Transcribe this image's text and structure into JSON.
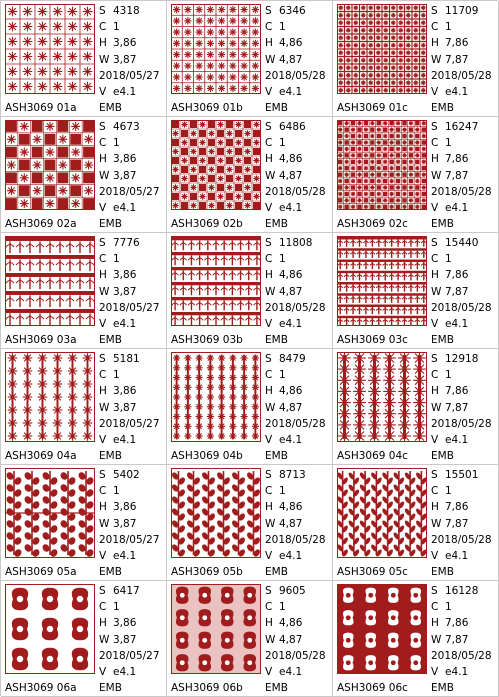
{
  "palette": {
    "thread": "#a11d1d",
    "light": "#c55050",
    "grid": "#c9c9c9"
  },
  "labels": {
    "stitches": "S",
    "colors": "C",
    "height": "H",
    "width": "W",
    "version": "V"
  },
  "items": [
    {
      "name": "ASH3069  01a",
      "s": "4318",
      "c": "1",
      "h": "3,86",
      "w": "3,87",
      "date": "2018/05/27",
      "v": "e4.1",
      "fmt": "EMB",
      "pattern": "lattice",
      "density": 1
    },
    {
      "name": "ASH3069  01b",
      "s": "6346",
      "c": "1",
      "h": "4,86",
      "w": "4,87",
      "date": "2018/05/28",
      "v": "e4.1",
      "fmt": "EMB",
      "pattern": "lattice",
      "density": 2
    },
    {
      "name": "ASH3069  01c",
      "s": "11709",
      "c": "1",
      "h": "7,86",
      "w": "7,87",
      "date": "2018/05/28",
      "v": "e4.1",
      "fmt": "EMB",
      "pattern": "lattice",
      "density": 3
    },
    {
      "name": "ASH3069  02a",
      "s": "4673",
      "c": "1",
      "h": "3,86",
      "w": "3,87",
      "date": "2018/05/27",
      "v": "e4.1",
      "fmt": "EMB",
      "pattern": "checker",
      "density": 1
    },
    {
      "name": "ASH3069  02b",
      "s": "6486",
      "c": "1",
      "h": "4,86",
      "w": "4,87",
      "date": "2018/05/28",
      "v": "e4.1",
      "fmt": "EMB",
      "pattern": "checker",
      "density": 2
    },
    {
      "name": "ASH3069  02c",
      "s": "16247",
      "c": "1",
      "h": "7,86",
      "w": "7,87",
      "date": "2018/05/28",
      "v": "e4.1",
      "fmt": "EMB",
      "pattern": "checker",
      "density": 3
    },
    {
      "name": "ASH3069  03a",
      "s": "7776",
      "c": "1",
      "h": "3,86",
      "w": "3,87",
      "date": "2018/05/27",
      "v": "e4.1",
      "fmt": "EMB",
      "pattern": "bands",
      "density": 1
    },
    {
      "name": "ASH3069  03b",
      "s": "11808",
      "c": "1",
      "h": "4,86",
      "w": "4,87",
      "date": "2018/05/28",
      "v": "e4.1",
      "fmt": "EMB",
      "pattern": "bands",
      "density": 2
    },
    {
      "name": "ASH3069  03c",
      "s": "15440",
      "c": "1",
      "h": "7,86",
      "w": "7,87",
      "date": "2018/05/28",
      "v": "e4.1",
      "fmt": "EMB",
      "pattern": "bands",
      "density": 3
    },
    {
      "name": "ASH3069  04a",
      "s": "5181",
      "c": "1",
      "h": "3,86",
      "w": "3,87",
      "date": "2018/05/27",
      "v": "e4.1",
      "fmt": "EMB",
      "pattern": "columns",
      "density": 1
    },
    {
      "name": "ASH3069  04b",
      "s": "8479",
      "c": "1",
      "h": "4,86",
      "w": "4,87",
      "date": "2018/05/28",
      "v": "e4.1",
      "fmt": "EMB",
      "pattern": "columns",
      "density": 2
    },
    {
      "name": "ASH3069  04c",
      "s": "12918",
      "c": "1",
      "h": "7,86",
      "w": "7,87",
      "date": "2018/05/28",
      "v": "e4.1",
      "fmt": "EMB",
      "pattern": "columns",
      "density": 3
    },
    {
      "name": "ASH3069  05a",
      "s": "5402",
      "c": "1",
      "h": "3,86",
      "w": "3,87",
      "date": "2018/05/27",
      "v": "e4.1",
      "fmt": "EMB",
      "pattern": "vines",
      "density": 1
    },
    {
      "name": "ASH3069  05b",
      "s": "8713",
      "c": "1",
      "h": "4,86",
      "w": "4,87",
      "date": "2018/05/28",
      "v": "e4.1",
      "fmt": "EMB",
      "pattern": "vines",
      "density": 2
    },
    {
      "name": "ASH3069  05c",
      "s": "15501",
      "c": "1",
      "h": "7,86",
      "w": "7,87",
      "date": "2018/05/28",
      "v": "e4.1",
      "fmt": "EMB",
      "pattern": "vines",
      "density": 3
    },
    {
      "name": "ASH3069  06a",
      "s": "6417",
      "c": "1",
      "h": "3,86",
      "w": "3,87",
      "date": "2018/05/27",
      "v": "e4.1",
      "fmt": "EMB",
      "pattern": "damask",
      "density": 1
    },
    {
      "name": "ASH3069  06b",
      "s": "9605",
      "c": "1",
      "h": "4,86",
      "w": "4,87",
      "date": "2018/05/28",
      "v": "e4.1",
      "fmt": "EMB",
      "pattern": "damask",
      "density": 2
    },
    {
      "name": "ASH3069  06c",
      "s": "16128",
      "c": "1",
      "h": "7,86",
      "w": "7,87",
      "date": "2018/05/28",
      "v": "e4.1",
      "fmt": "EMB",
      "pattern": "damask",
      "density": 3
    }
  ]
}
